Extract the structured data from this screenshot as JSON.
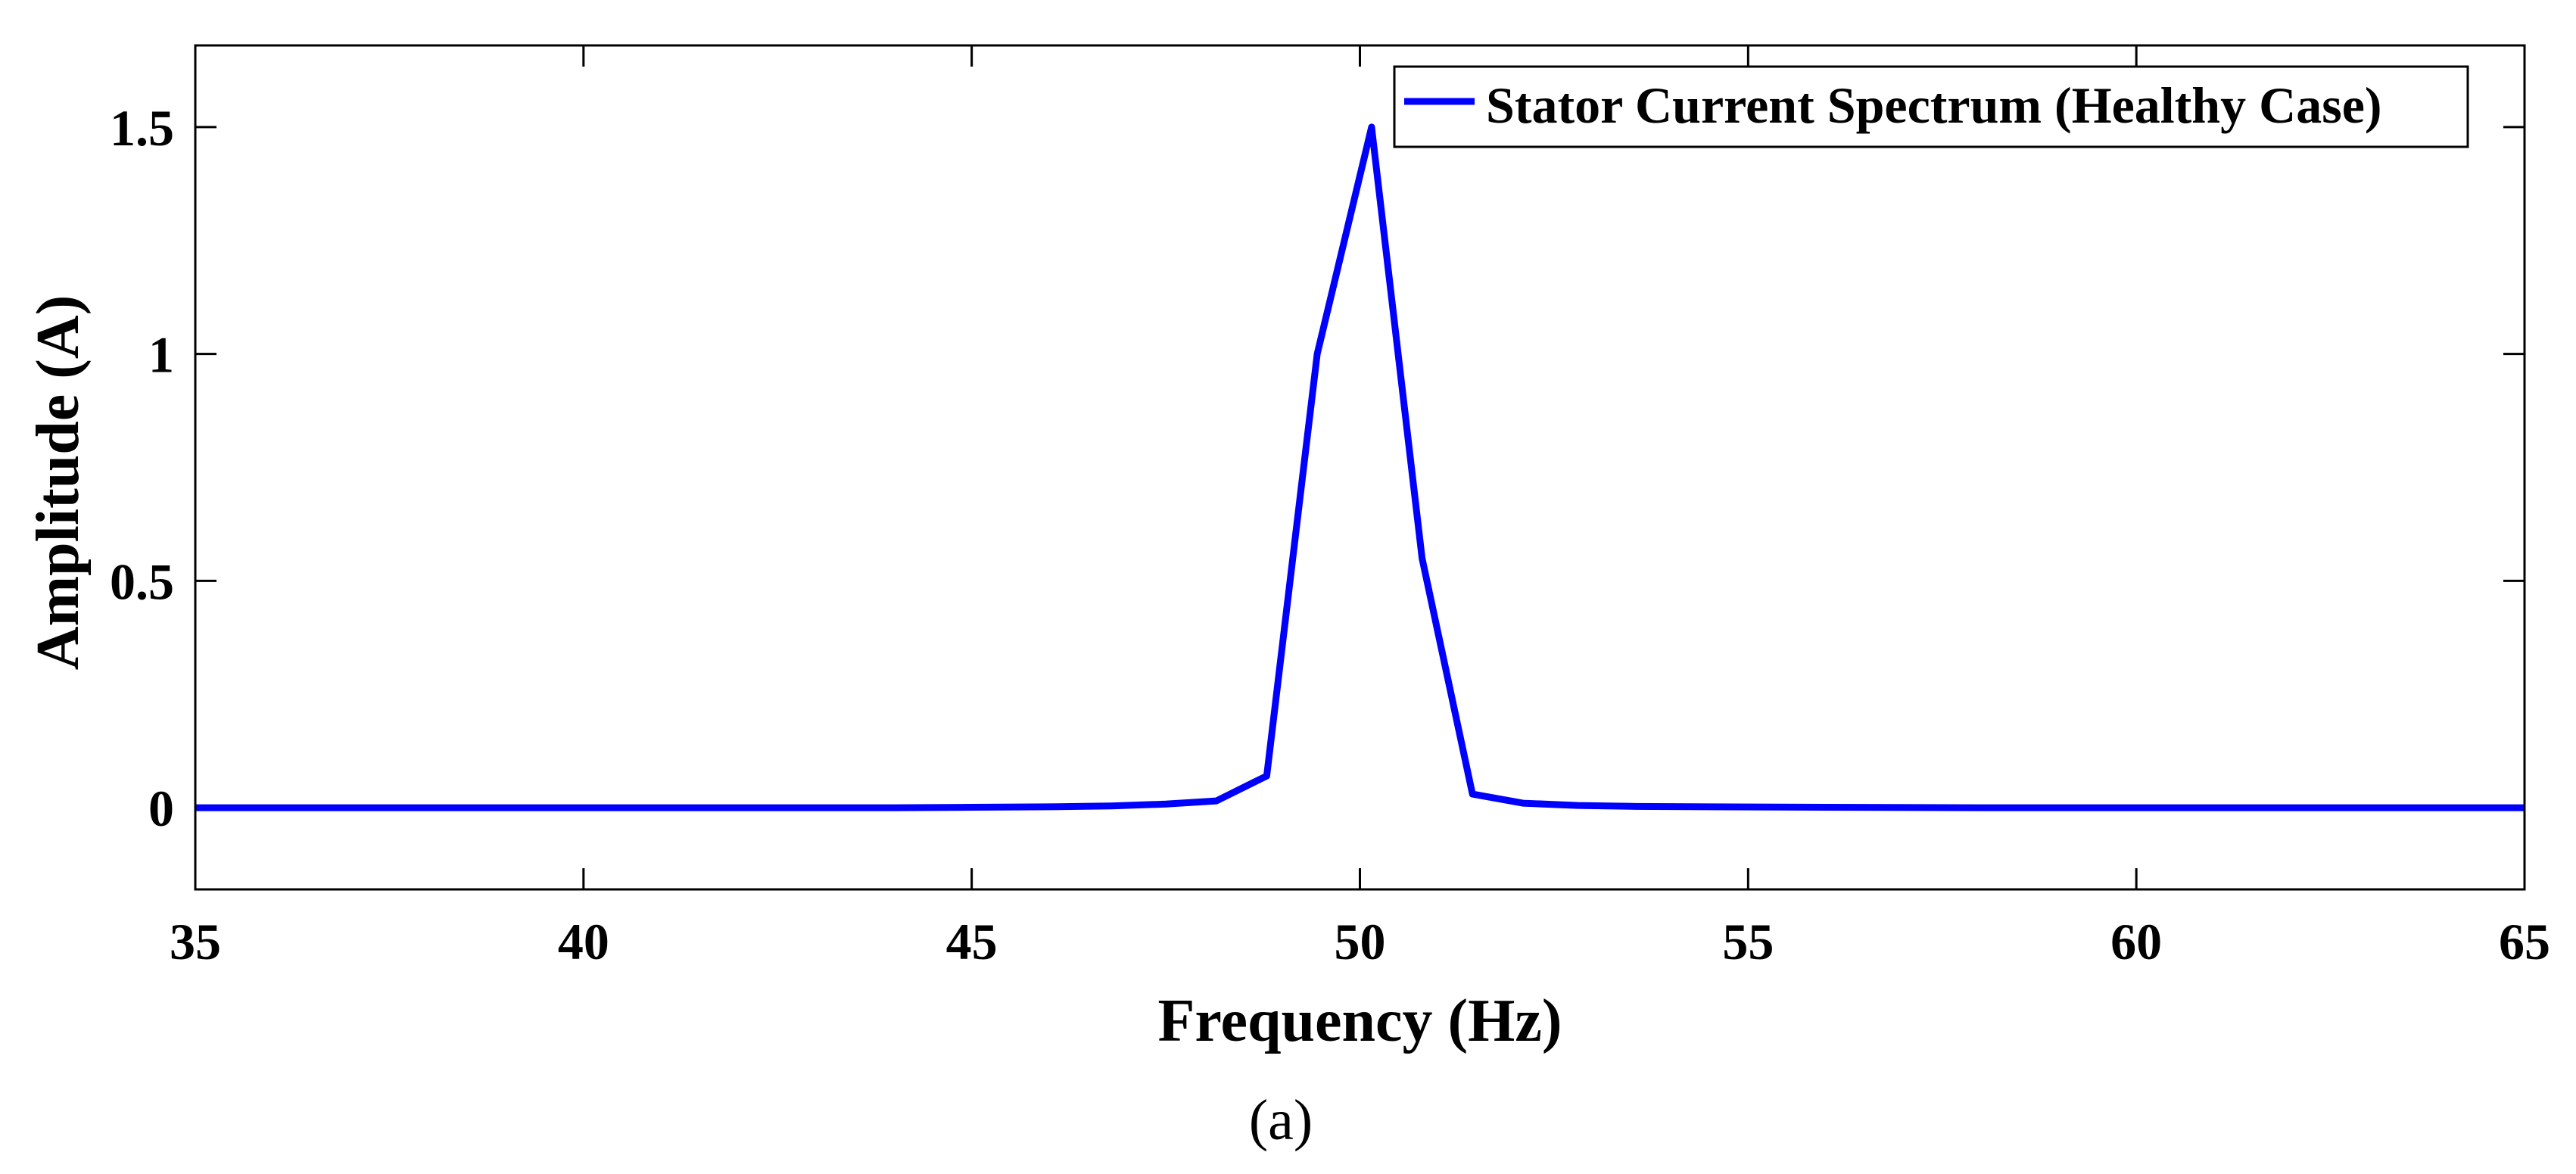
{
  "chart_data": {
    "type": "line",
    "title": "",
    "xlabel": "Frequency (Hz)",
    "ylabel": "Amplitude (A)",
    "xlim": [
      35,
      65
    ],
    "ylim": [
      -0.18,
      1.68
    ],
    "xticks": [
      35,
      40,
      45,
      50,
      55,
      60,
      65
    ],
    "yticks": [
      0,
      0.5,
      1,
      1.5
    ],
    "ytick_labels": [
      "0",
      "0.5",
      "1",
      "1.5"
    ],
    "grid": false,
    "legend_position": "top-right",
    "series": [
      {
        "name": "Stator Current Spectrum (Healthy Case)",
        "color": "#0000FF",
        "x": [
          35,
          36,
          37,
          38,
          39,
          40,
          41,
          42,
          43,
          44,
          45,
          46,
          46.8,
          47.5,
          48.15,
          48.8,
          49.45,
          50.15,
          50.8,
          51.45,
          52.1,
          52.8,
          53.5,
          54.5,
          56,
          58,
          60,
          62,
          64,
          65
        ],
        "y": [
          0,
          0,
          0,
          0,
          0,
          0,
          0,
          0,
          0,
          0,
          0.001,
          0.002,
          0.004,
          0.008,
          0.015,
          0.07,
          1.0,
          1.5,
          0.55,
          0.03,
          0.01,
          0.005,
          0.003,
          0.002,
          0.001,
          0,
          0,
          0,
          0,
          0
        ]
      }
    ]
  },
  "caption": "(a)"
}
